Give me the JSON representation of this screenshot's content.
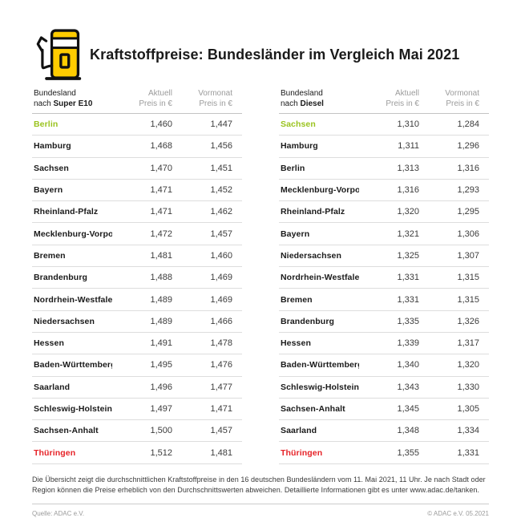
{
  "page": {
    "title": "Kraftstoffpreise: Bundesländer im Vergleich Mai 2021",
    "footnote": "Die Übersicht zeigt die durchschnittlichen Kraftstoffpreise in den 16 deutschen Bundesländern vom 11. Mai 2021, 11 Uhr. Je nach Stadt oder Region können die Preise erheblich von den Durchschnittswerten abweichen. Detaillierte Informationen gibt es unter www.adac.de/tanken.",
    "source": "Quelle: ADAC e.V.",
    "copyright": "© ADAC e.V. 05.2021"
  },
  "columns": {
    "region_label": "Bundesland",
    "region_prefix": "nach",
    "current_label": "Aktuell",
    "previous_label": "Vormonat",
    "price_unit": "Preis in €"
  },
  "colors": {
    "accent_yellow": "#FFCC00",
    "best_price_green": "#9AC31E",
    "worst_price_red": "#E62328",
    "header_gray": "#9B9B9B"
  },
  "icon": "fuel-pump-icon",
  "tables": [
    {
      "fuel": "Super E10",
      "rows": [
        {
          "state": "Berlin",
          "current": "1,460",
          "previous": "1,447",
          "highlight": "best"
        },
        {
          "state": "Hamburg",
          "current": "1,468",
          "previous": "1,456",
          "highlight": null
        },
        {
          "state": "Sachsen",
          "current": "1,470",
          "previous": "1,451",
          "highlight": null
        },
        {
          "state": "Bayern",
          "current": "1,471",
          "previous": "1,452",
          "highlight": null
        },
        {
          "state": "Rheinland-Pfalz",
          "current": "1,471",
          "previous": "1,462",
          "highlight": null
        },
        {
          "state": "Mecklenburg-Vorpommern",
          "current": "1,472",
          "previous": "1,457",
          "highlight": null
        },
        {
          "state": "Bremen",
          "current": "1,481",
          "previous": "1,460",
          "highlight": null
        },
        {
          "state": "Brandenburg",
          "current": "1,488",
          "previous": "1,469",
          "highlight": null
        },
        {
          "state": "Nordrhein-Westfalen",
          "current": "1,489",
          "previous": "1,469",
          "highlight": null
        },
        {
          "state": "Niedersachsen",
          "current": "1,489",
          "previous": "1,466",
          "highlight": null
        },
        {
          "state": "Hessen",
          "current": "1,491",
          "previous": "1,478",
          "highlight": null
        },
        {
          "state": "Baden-Württemberg",
          "current": "1,495",
          "previous": "1,476",
          "highlight": null
        },
        {
          "state": "Saarland",
          "current": "1,496",
          "previous": "1,477",
          "highlight": null
        },
        {
          "state": "Schleswig-Holstein",
          "current": "1,497",
          "previous": "1,471",
          "highlight": null
        },
        {
          "state": "Sachsen-Anhalt",
          "current": "1,500",
          "previous": "1,457",
          "highlight": null
        },
        {
          "state": "Thüringen",
          "current": "1,512",
          "previous": "1,481",
          "highlight": "worst"
        }
      ]
    },
    {
      "fuel": "Diesel",
      "rows": [
        {
          "state": "Sachsen",
          "current": "1,310",
          "previous": "1,284",
          "highlight": "best"
        },
        {
          "state": "Hamburg",
          "current": "1,311",
          "previous": "1,296",
          "highlight": null
        },
        {
          "state": "Berlin",
          "current": "1,313",
          "previous": "1,316",
          "highlight": null
        },
        {
          "state": "Mecklenburg-Vorpommern",
          "current": "1,316",
          "previous": "1,293",
          "highlight": null
        },
        {
          "state": "Rheinland-Pfalz",
          "current": "1,320",
          "previous": "1,295",
          "highlight": null
        },
        {
          "state": "Bayern",
          "current": "1,321",
          "previous": "1,306",
          "highlight": null
        },
        {
          "state": "Niedersachsen",
          "current": "1,325",
          "previous": "1,307",
          "highlight": null
        },
        {
          "state": "Nordrhein-Westfalen",
          "current": "1,331",
          "previous": "1,315",
          "highlight": null
        },
        {
          "state": "Bremen",
          "current": "1,331",
          "previous": "1,315",
          "highlight": null
        },
        {
          "state": "Brandenburg",
          "current": "1,335",
          "previous": "1,326",
          "highlight": null
        },
        {
          "state": "Hessen",
          "current": "1,339",
          "previous": "1,317",
          "highlight": null
        },
        {
          "state": "Baden-Württemberg",
          "current": "1,340",
          "previous": "1,320",
          "highlight": null
        },
        {
          "state": "Schleswig-Holstein",
          "current": "1,343",
          "previous": "1,330",
          "highlight": null
        },
        {
          "state": "Sachsen-Anhalt",
          "current": "1,345",
          "previous": "1,305",
          "highlight": null
        },
        {
          "state": "Saarland",
          "current": "1,348",
          "previous": "1,334",
          "highlight": null
        },
        {
          "state": "Thüringen",
          "current": "1,355",
          "previous": "1,331",
          "highlight": "worst"
        }
      ]
    }
  ]
}
